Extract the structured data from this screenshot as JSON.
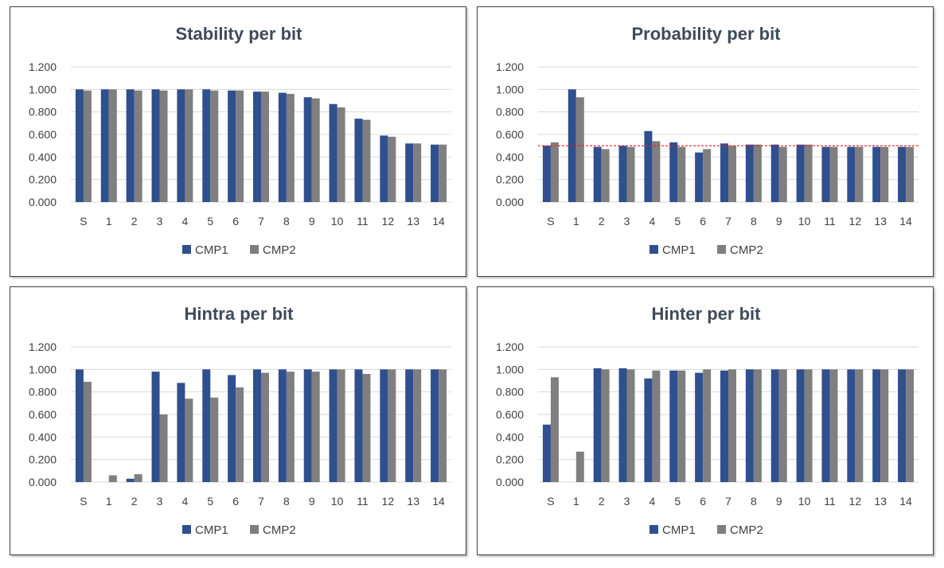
{
  "colors": {
    "cmp1": "#2f4f8f",
    "cmp2": "#7f7f7f",
    "grid": "#d9d9d9",
    "reference": "#e02020"
  },
  "chart_data": [
    {
      "type": "bar",
      "title": "Stability per bit",
      "categories": [
        "S",
        "1",
        "2",
        "3",
        "4",
        "5",
        "6",
        "7",
        "8",
        "9",
        "10",
        "11",
        "12",
        "13",
        "14"
      ],
      "series": [
        {
          "name": "CMP1",
          "values": [
            1.0,
            1.0,
            1.0,
            1.0,
            1.0,
            1.0,
            0.99,
            0.98,
            0.97,
            0.93,
            0.87,
            0.74,
            0.59,
            0.52,
            0.51
          ]
        },
        {
          "name": "CMP2",
          "values": [
            0.99,
            1.0,
            0.99,
            0.99,
            1.0,
            0.99,
            0.99,
            0.98,
            0.96,
            0.92,
            0.84,
            0.73,
            0.58,
            0.52,
            0.51
          ]
        }
      ],
      "yticks": [
        "0.000",
        "0.200",
        "0.400",
        "0.600",
        "0.800",
        "1.000",
        "1.200"
      ],
      "ylim": [
        0,
        1.2
      ],
      "grid": true,
      "legend": "bottom"
    },
    {
      "type": "bar",
      "title": "Probability  per bit",
      "categories": [
        "S",
        "1",
        "2",
        "3",
        "4",
        "5",
        "6",
        "7",
        "8",
        "9",
        "10",
        "11",
        "12",
        "13",
        "14"
      ],
      "series": [
        {
          "name": "CMP1",
          "values": [
            0.5,
            1.0,
            0.49,
            0.5,
            0.63,
            0.53,
            0.44,
            0.52,
            0.51,
            0.51,
            0.51,
            0.49,
            0.49,
            0.49,
            0.49
          ]
        },
        {
          "name": "CMP2",
          "values": [
            0.53,
            0.93,
            0.47,
            0.49,
            0.54,
            0.49,
            0.47,
            0.5,
            0.51,
            0.49,
            0.51,
            0.49,
            0.49,
            0.49,
            0.49
          ]
        }
      ],
      "reference_line": 0.5,
      "yticks": [
        "0.000",
        "0.200",
        "0.400",
        "0.600",
        "0.800",
        "1.000",
        "1.200"
      ],
      "ylim": [
        0,
        1.2
      ],
      "grid": true,
      "legend": "bottom"
    },
    {
      "type": "bar",
      "title": "Hintra  per bit",
      "categories": [
        "S",
        "1",
        "2",
        "3",
        "4",
        "5",
        "6",
        "7",
        "8",
        "9",
        "10",
        "11",
        "12",
        "13",
        "14"
      ],
      "series": [
        {
          "name": "CMP1",
          "values": [
            1.0,
            0.0,
            0.03,
            0.98,
            0.88,
            1.0,
            0.95,
            1.0,
            1.0,
            1.0,
            1.0,
            1.0,
            1.0,
            1.0,
            1.0
          ]
        },
        {
          "name": "CMP2",
          "values": [
            0.89,
            0.06,
            0.07,
            0.6,
            0.74,
            0.75,
            0.84,
            0.97,
            0.98,
            0.98,
            1.0,
            0.96,
            1.0,
            1.0,
            1.0
          ]
        }
      ],
      "yticks": [
        "0.000",
        "0.200",
        "0.400",
        "0.600",
        "0.800",
        "1.000",
        "1.200"
      ],
      "ylim": [
        0,
        1.2
      ],
      "grid": true,
      "legend": "bottom"
    },
    {
      "type": "bar",
      "title": "Hinter per bit",
      "categories": [
        "S",
        "1",
        "2",
        "3",
        "4",
        "5",
        "6",
        "7",
        "8",
        "9",
        "10",
        "11",
        "12",
        "13",
        "14"
      ],
      "series": [
        {
          "name": "CMP1",
          "values": [
            0.51,
            0.0,
            1.01,
            1.01,
            0.92,
            0.99,
            0.97,
            0.99,
            1.0,
            1.0,
            1.0,
            1.0,
            1.0,
            1.0,
            1.0
          ]
        },
        {
          "name": "CMP2",
          "values": [
            0.93,
            0.27,
            1.0,
            1.0,
            0.99,
            0.99,
            1.0,
            1.0,
            1.0,
            1.0,
            1.0,
            1.0,
            1.0,
            1.0,
            1.0
          ]
        }
      ],
      "yticks": [
        "0.000",
        "0.200",
        "0.400",
        "0.600",
        "0.800",
        "1.000",
        "1.200"
      ],
      "ylim": [
        0,
        1.2
      ],
      "grid": true,
      "legend": "bottom"
    }
  ]
}
